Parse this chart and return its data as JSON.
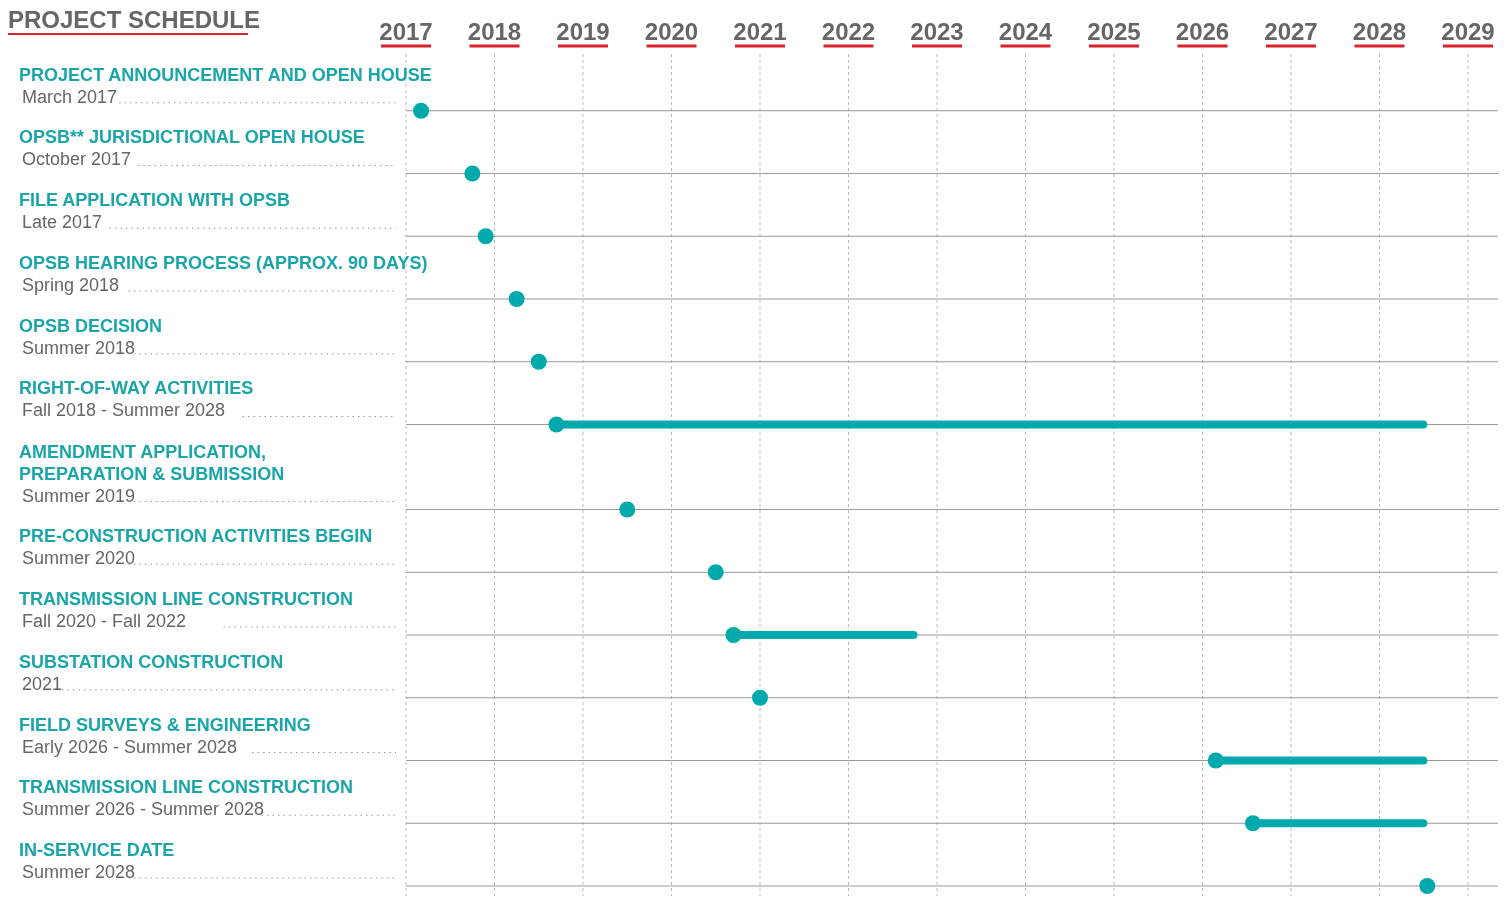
{
  "chart_data": {
    "type": "bar",
    "orientation": "horizontal",
    "title": "PROJECT SCHEDULE",
    "categories": [
      "PROJECT ANNOUNCEMENT AND OPEN HOUSE\nMarch 2017",
      "OPSB** JURISDICTIONAL OPEN HOUSE\nOctober 2017",
      "FILE APPLICATION WITH OPSB\nLate 2017",
      "OPSB HEARING PROCESS (APPROX. 90 DAYS)\nSpring 2018",
      "OPSB DECISION\nSummer 2018",
      "RIGHT-OF-WAY ACTIVITIES\nFall 2018 - Summer 2028",
      "AMENDMENT APPLICATION,\nPREPARATION & SUBMISSION\nSummer 2019",
      "PRE-CONSTRUCTION ACTIVITIES BEGIN\nSummer 2020",
      "TRANSMISSION LINE CONSTRUCTION\nFall 2020 - Fall 2022",
      "SUBSTATION CONSTRUCTION\n2021",
      "FIELD SURVEYS & ENGINEERING\nEarly 2026 - Summer 2028",
      "TRANSMISSION LINE CONSTRUCTION\nSummer 2026 - Summer 2028",
      "IN-SERVICE DATE\nSummer 2028"
    ],
    "series": [
      {
        "type": "bar",
        "color": "#00a9ac",
        "base": [
          null,
          null,
          null,
          null,
          null,
          2018.7,
          null,
          null,
          2020.7,
          null,
          2026.15,
          2026.57,
          null
        ],
        "values": [
          null,
          null,
          null,
          null,
          null,
          9.84,
          null,
          null,
          2.08,
          null,
          2.39,
          1.97,
          null
        ]
      },
      {
        "type": "scatter",
        "color": "#00a9ac",
        "values": [
          2017.17,
          2017.75,
          2017.9,
          2018.25,
          2018.5,
          2018.7,
          2019.5,
          2020.5,
          2020.7,
          2021.0,
          2026.15,
          2026.57,
          2028.54
        ]
      }
    ],
    "marker": "circle",
    "xlim": [
      2017,
      2029
    ],
    "xticks": [
      2017,
      2018,
      2019,
      2020,
      2021,
      2022,
      2023,
      2024,
      2025,
      2026,
      2027,
      2028,
      2029
    ],
    "grid": true
  }
}
